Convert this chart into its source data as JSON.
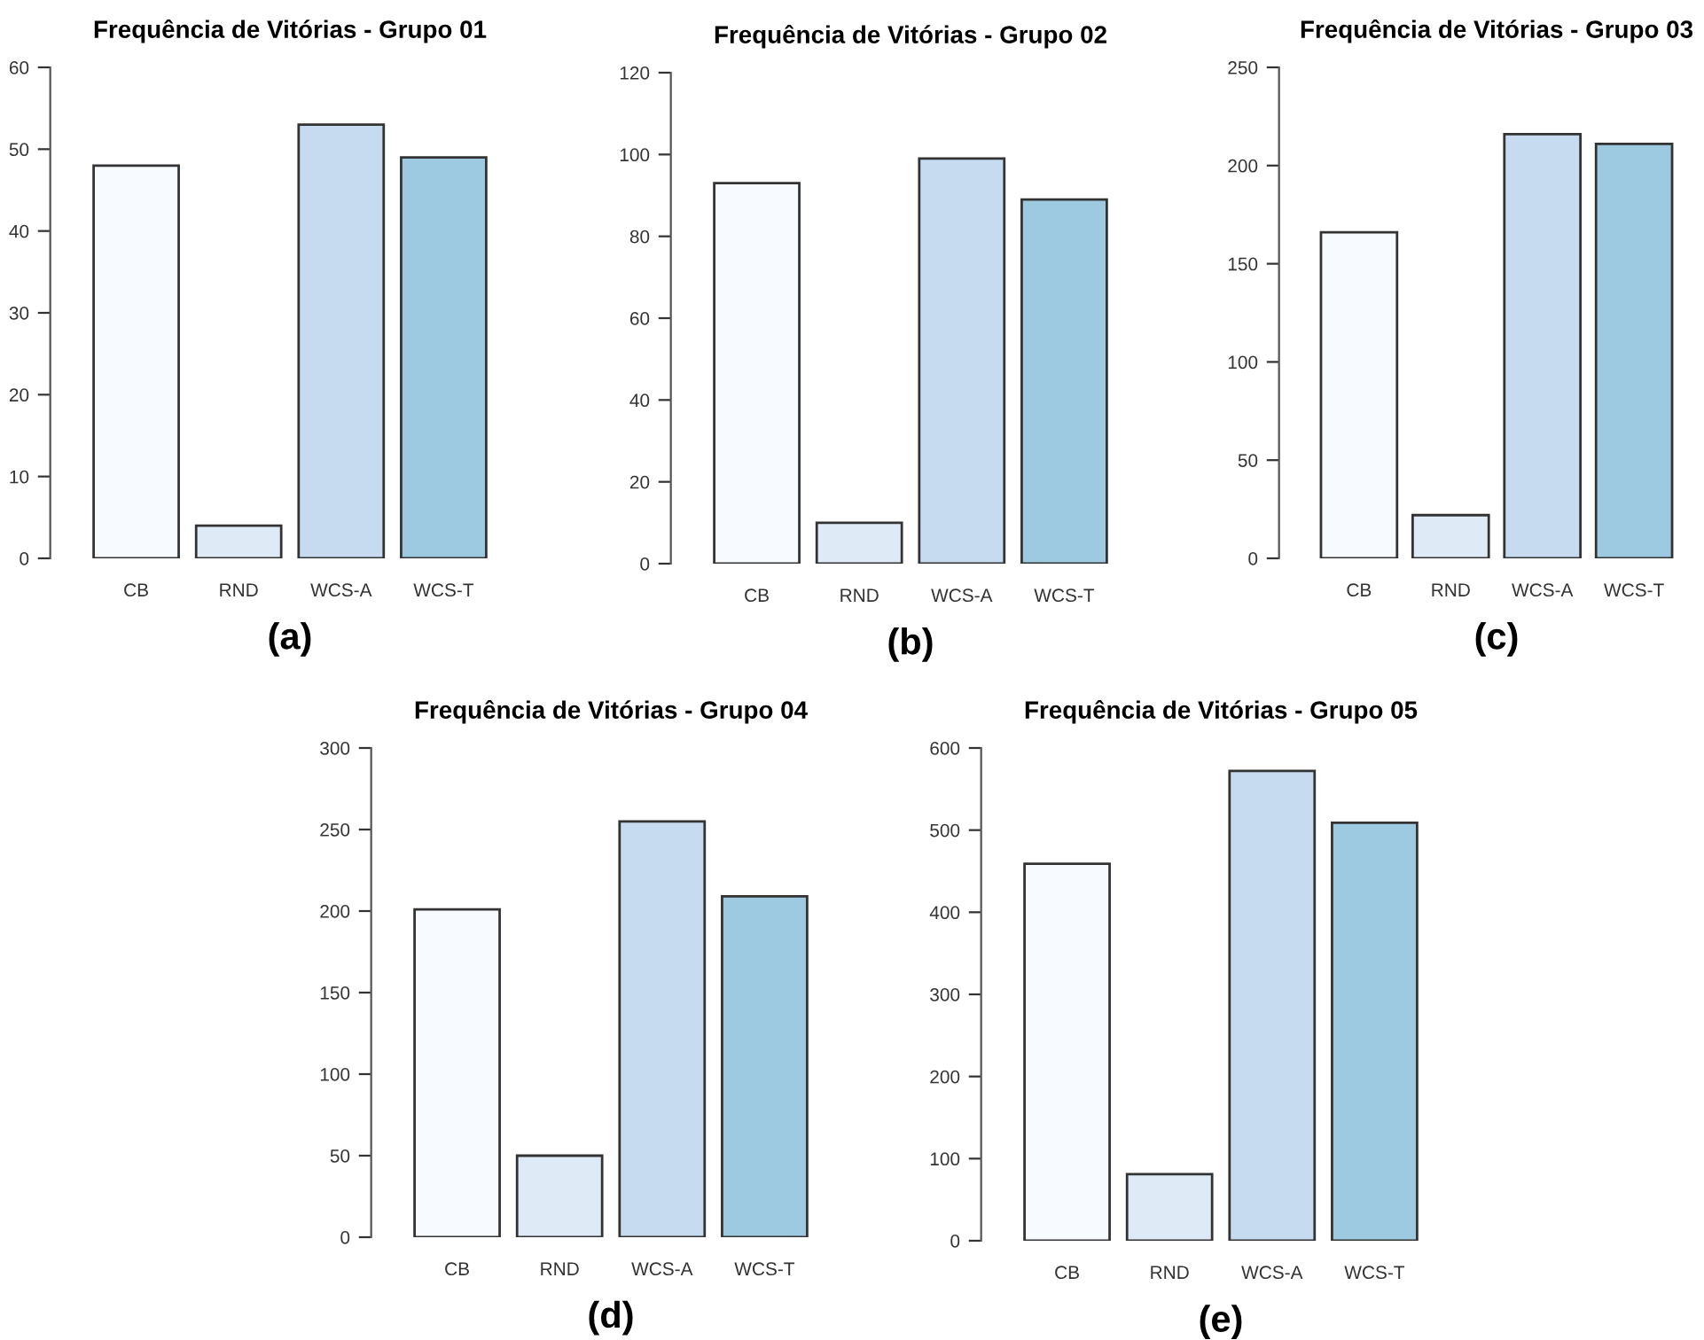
{
  "chart_data": [
    {
      "type": "bar",
      "title": "Frequência de Vitórias - Grupo 01",
      "categories": [
        "CB",
        "RND",
        "WCS-A",
        "WCS-T"
      ],
      "values": [
        48,
        4,
        53,
        49
      ],
      "colors": [
        "#f7fbff",
        "#deebf7",
        "#c6dbef",
        "#9ecae1"
      ],
      "ylim": [
        0,
        60
      ],
      "yticks": [
        0,
        10,
        20,
        30,
        40,
        50,
        60
      ],
      "annotations": [
        "(a)"
      ]
    },
    {
      "type": "bar",
      "title": "Frequência de Vitórias - Grupo 02",
      "categories": [
        "CB",
        "RND",
        "WCS-A",
        "WCS-T"
      ],
      "values": [
        93,
        10,
        99,
        89
      ],
      "colors": [
        "#f7fbff",
        "#deebf7",
        "#c6dbef",
        "#9ecae1"
      ],
      "ylim": [
        0,
        120
      ],
      "yticks": [
        0,
        20,
        40,
        60,
        80,
        100,
        120
      ],
      "annotations": [
        "(b)"
      ]
    },
    {
      "type": "bar",
      "title": "Frequência de Vitórias - Grupo 03",
      "categories": [
        "CB",
        "RND",
        "WCS-A",
        "WCS-T"
      ],
      "values": [
        166,
        22,
        216,
        211
      ],
      "colors": [
        "#f7fbff",
        "#deebf7",
        "#c6dbef",
        "#9ecae1"
      ],
      "ylim": [
        0,
        250
      ],
      "yticks": [
        0,
        50,
        100,
        150,
        200,
        250
      ],
      "annotations": [
        "(c)"
      ]
    },
    {
      "type": "bar",
      "title": "Frequência de Vitórias - Grupo 04",
      "categories": [
        "CB",
        "RND",
        "WCS-A",
        "WCS-T"
      ],
      "values": [
        201,
        50,
        255,
        209
      ],
      "colors": [
        "#f7fbff",
        "#deebf7",
        "#c6dbef",
        "#9ecae1"
      ],
      "ylim": [
        0,
        300
      ],
      "yticks": [
        0,
        50,
        100,
        150,
        200,
        250,
        300
      ],
      "annotations": [
        "(d)"
      ]
    },
    {
      "type": "bar",
      "title": "Frequência de Vitórias - Grupo 05",
      "categories": [
        "CB",
        "RND",
        "WCS-A",
        "WCS-T"
      ],
      "values": [
        459,
        81,
        572,
        509
      ],
      "colors": [
        "#f7fbff",
        "#deebf7",
        "#c6dbef",
        "#9ecae1"
      ],
      "ylim": [
        0,
        600
      ],
      "yticks": [
        0,
        100,
        200,
        300,
        400,
        500,
        600
      ],
      "annotations": [
        "(e)"
      ]
    }
  ]
}
